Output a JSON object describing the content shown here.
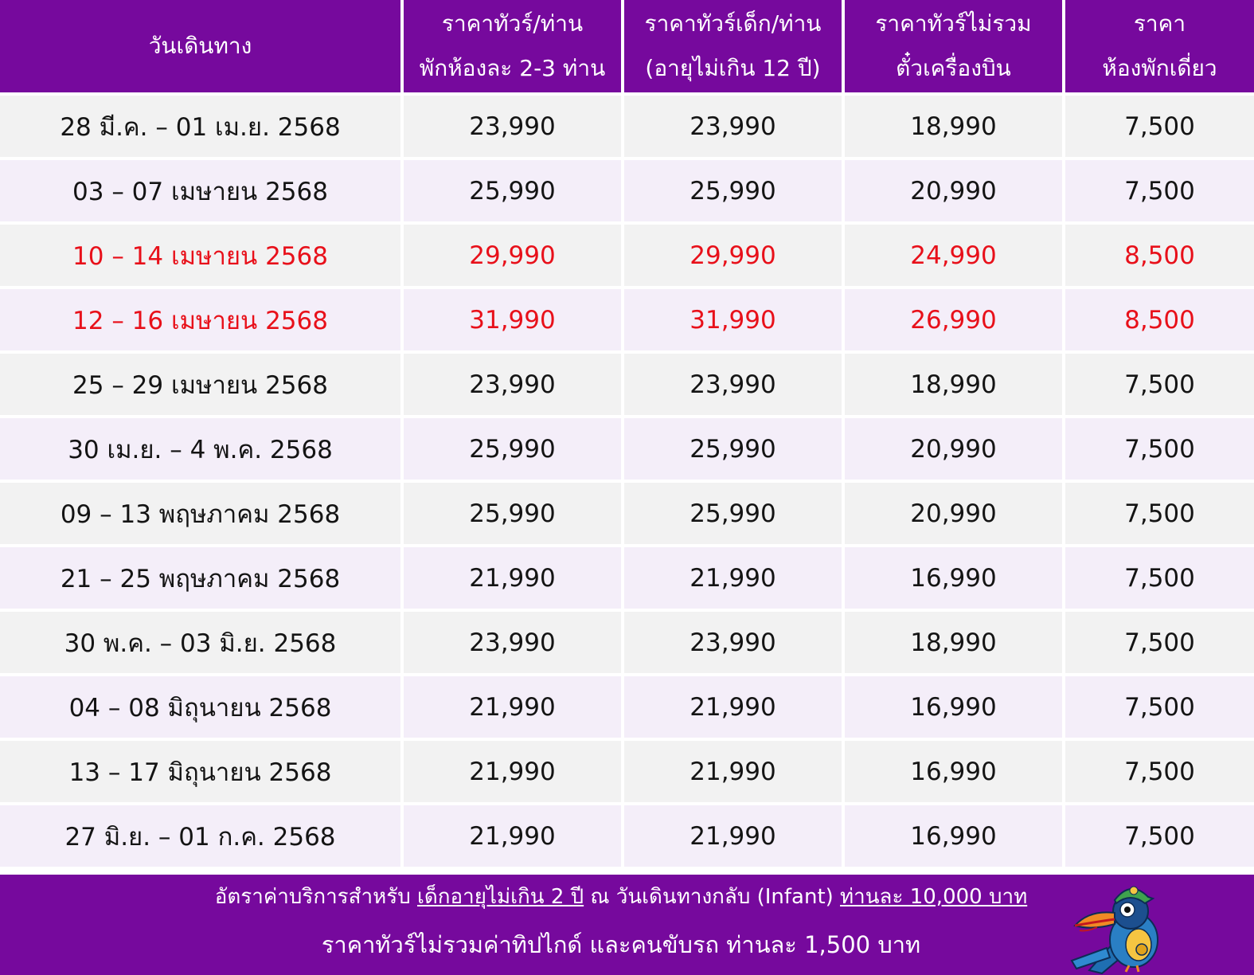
{
  "table": {
    "headers": [
      {
        "line1": "วันเดินทาง",
        "line2": ""
      },
      {
        "line1": "ราคาทัวร์/ท่าน",
        "line2": "พักห้องละ 2-3 ท่าน"
      },
      {
        "line1": "ราคาทัวร์เด็ก/ท่าน",
        "line2": "(อายุไม่เกิน 12 ปี)"
      },
      {
        "line1": "ราคาทัวร์ไม่รวม",
        "line2": "ตั๋วเครื่องบิน"
      },
      {
        "line1": "ราคา",
        "line2": "ห้องพักเดี่ยว"
      }
    ],
    "rows": [
      {
        "date": "28 มี.ค. – 01 เม.ย. 2568",
        "adult": "23,990",
        "child": "23,990",
        "no_flight": "18,990",
        "single": "7,500",
        "highlight": false
      },
      {
        "date": "03 – 07 เมษายน 2568",
        "adult": "25,990",
        "child": "25,990",
        "no_flight": "20,990",
        "single": "7,500",
        "highlight": false
      },
      {
        "date": "10 – 14 เมษายน 2568",
        "adult": "29,990",
        "child": "29,990",
        "no_flight": "24,990",
        "single": "8,500",
        "highlight": true
      },
      {
        "date": "12 – 16 เมษายน 2568",
        "adult": "31,990",
        "child": "31,990",
        "no_flight": "26,990",
        "single": "8,500",
        "highlight": true
      },
      {
        "date": "25 – 29 เมษายน 2568",
        "adult": "23,990",
        "child": "23,990",
        "no_flight": "18,990",
        "single": "7,500",
        "highlight": false
      },
      {
        "date": "30 เม.ย. – 4 พ.ค. 2568",
        "adult": "25,990",
        "child": "25,990",
        "no_flight": "20,990",
        "single": "7,500",
        "highlight": false
      },
      {
        "date": "09 – 13 พฤษภาคม 2568",
        "adult": "25,990",
        "child": "25,990",
        "no_flight": "20,990",
        "single": "7,500",
        "highlight": false
      },
      {
        "date": "21 – 25 พฤษภาคม 2568",
        "adult": "21,990",
        "child": "21,990",
        "no_flight": "16,990",
        "single": "7,500",
        "highlight": false
      },
      {
        "date": "30 พ.ค. – 03 มิ.ย. 2568",
        "adult": "23,990",
        "child": "23,990",
        "no_flight": "18,990",
        "single": "7,500",
        "highlight": false
      },
      {
        "date": "04 – 08 มิถุนายน 2568",
        "adult": "21,990",
        "child": "21,990",
        "no_flight": "16,990",
        "single": "7,500",
        "highlight": false
      },
      {
        "date": "13 – 17 มิถุนายน 2568",
        "adult": "21,990",
        "child": "21,990",
        "no_flight": "16,990",
        "single": "7,500",
        "highlight": false
      },
      {
        "date": "27 มิ.ย. – 01 ก.ค. 2568",
        "adult": "21,990",
        "child": "21,990",
        "no_flight": "16,990",
        "single": "7,500",
        "highlight": false
      }
    ]
  },
  "footer": {
    "line1_prefix": "อัตราค่าบริการสำหรับ ",
    "line1_underlined_a": "เด็กอายุไม่เกิน 2 ปี",
    "line1_middle": " ณ วันเดินทางกลับ (Infant) ",
    "line1_underlined_b": "ท่านละ 10,000 บาท",
    "line2": "ราคาทัวร์ไม่รวมค่าทิปไกด์ และคนขับรถ ท่านละ 1,500 บาท"
  },
  "mascot": {
    "icon": "toucan-mascot-icon"
  },
  "colors": {
    "header_bg": "#76099d",
    "row_odd_bg": "#f2f2f2",
    "row_even_bg": "#f4eef9",
    "highlight_text": "#e8101a"
  }
}
